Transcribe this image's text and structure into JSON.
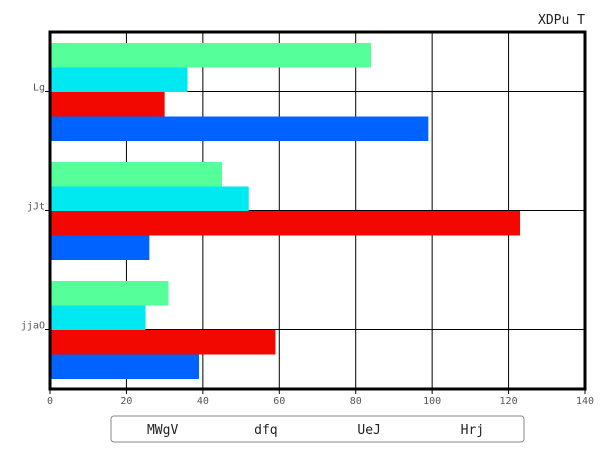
{
  "chart_data": {
    "type": "bar",
    "orientation": "horizontal",
    "title": "XDPu T",
    "xlabel": "",
    "ylabel": "",
    "xlim": [
      0,
      140
    ],
    "x_ticks": [
      0,
      20,
      40,
      60,
      80,
      100,
      120,
      140
    ],
    "categories": [
      "Lg",
      "jJt",
      "jjaO"
    ],
    "series": [
      {
        "name": "MWgV",
        "color": "#55ff99",
        "values": [
          84,
          45,
          31
        ]
      },
      {
        "name": "dfq",
        "color": "#00e8f0",
        "values": [
          36,
          52,
          25
        ]
      },
      {
        "name": "UeJ",
        "color": "#f20800",
        "values": [
          30,
          123,
          59
        ]
      },
      {
        "name": "Hrj",
        "color": "#0062ff",
        "values": [
          99,
          26,
          39
        ]
      }
    ],
    "grid": true,
    "legend_position": "bottom"
  }
}
